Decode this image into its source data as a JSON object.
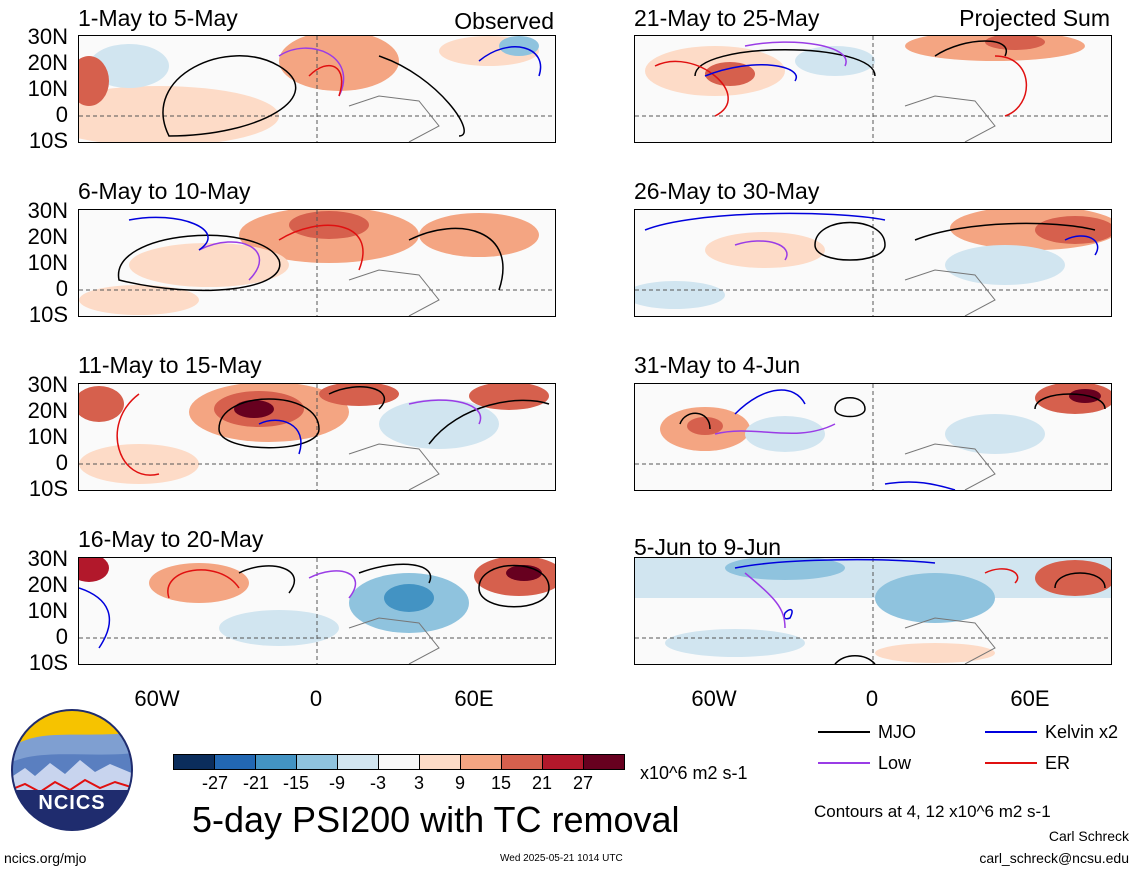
{
  "panels_left": [
    {
      "title": "1-May to 5-May",
      "tag": "Observed"
    },
    {
      "title": "6-May to 10-May",
      "tag": ""
    },
    {
      "title": "11-May to 15-May",
      "tag": ""
    },
    {
      "title": "16-May to 20-May",
      "tag": ""
    }
  ],
  "panels_right": [
    {
      "title": "21-May to 25-May",
      "tag": "Projected Sum"
    },
    {
      "title": "26-May to 30-May",
      "tag": ""
    },
    {
      "title": "31-May to 4-Jun",
      "tag": ""
    },
    {
      "title": "5-Jun to 9-Jun",
      "tag": ""
    }
  ],
  "lat_labels": [
    "30N",
    "20N",
    "10N",
    "0",
    "10S"
  ],
  "lon_labels": [
    "60W",
    "0",
    "60E"
  ],
  "legend": {
    "mjo": "MJO",
    "kelvin": "Kelvin x2",
    "low": "Low",
    "er": "ER",
    "colors": {
      "mjo": "#000000",
      "kelvin": "#0000dd",
      "low": "#9a3ce6",
      "er": "#e01010"
    }
  },
  "colorbar": {
    "labels": [
      "-27",
      "-21",
      "-15",
      "-9",
      "-3",
      "3",
      "9",
      "15",
      "21",
      "27"
    ],
    "colors": [
      "#0b2d5c",
      "#2267b2",
      "#4393c3",
      "#8fc3de",
      "#d1e5f0",
      "#f7f7f7",
      "#fddbc7",
      "#f4a582",
      "#d6604d",
      "#b2182b",
      "#67001f"
    ],
    "units": "x10^6 m2 s-1"
  },
  "main_title": "5-day PSI200 with TC removal",
  "contours_note": "Contours at 4, 12 x10^6 m2 s-1",
  "author": "Carl Schreck",
  "email": "carl_schreck@ncsu.edu",
  "url": "ncics.org/mjo",
  "timestamp": "Wed 2025-05-21 1014 UTC",
  "logo_text": "NCICS"
}
